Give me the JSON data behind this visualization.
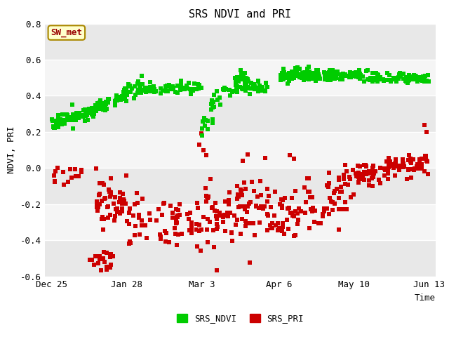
{
  "title": "SRS NDVI and PRI",
  "xlabel": "Time",
  "ylabel": "NDVI, PRI",
  "ylim": [
    -0.6,
    0.8
  ],
  "yticks": [
    -0.6,
    -0.4,
    -0.2,
    0.0,
    0.2,
    0.4,
    0.6,
    0.8
  ],
  "xtick_labels": [
    "Dec 25",
    "Jan 28",
    "Mar 3",
    "Apr 6",
    "May 10",
    "Jun 13"
  ],
  "xtick_positions": [
    0,
    34,
    68,
    103,
    137,
    171
  ],
  "annotation_text": "SW_met",
  "legend_labels": [
    "SRS_NDVI",
    "SRS_PRI"
  ],
  "ndvi_color": "#00cc00",
  "pri_color": "#cc0000",
  "marker": "s",
  "marker_size": 5,
  "white_band": "#ffffff",
  "gray_band": "#e8e8e8",
  "grid_line_color": "#cccccc"
}
